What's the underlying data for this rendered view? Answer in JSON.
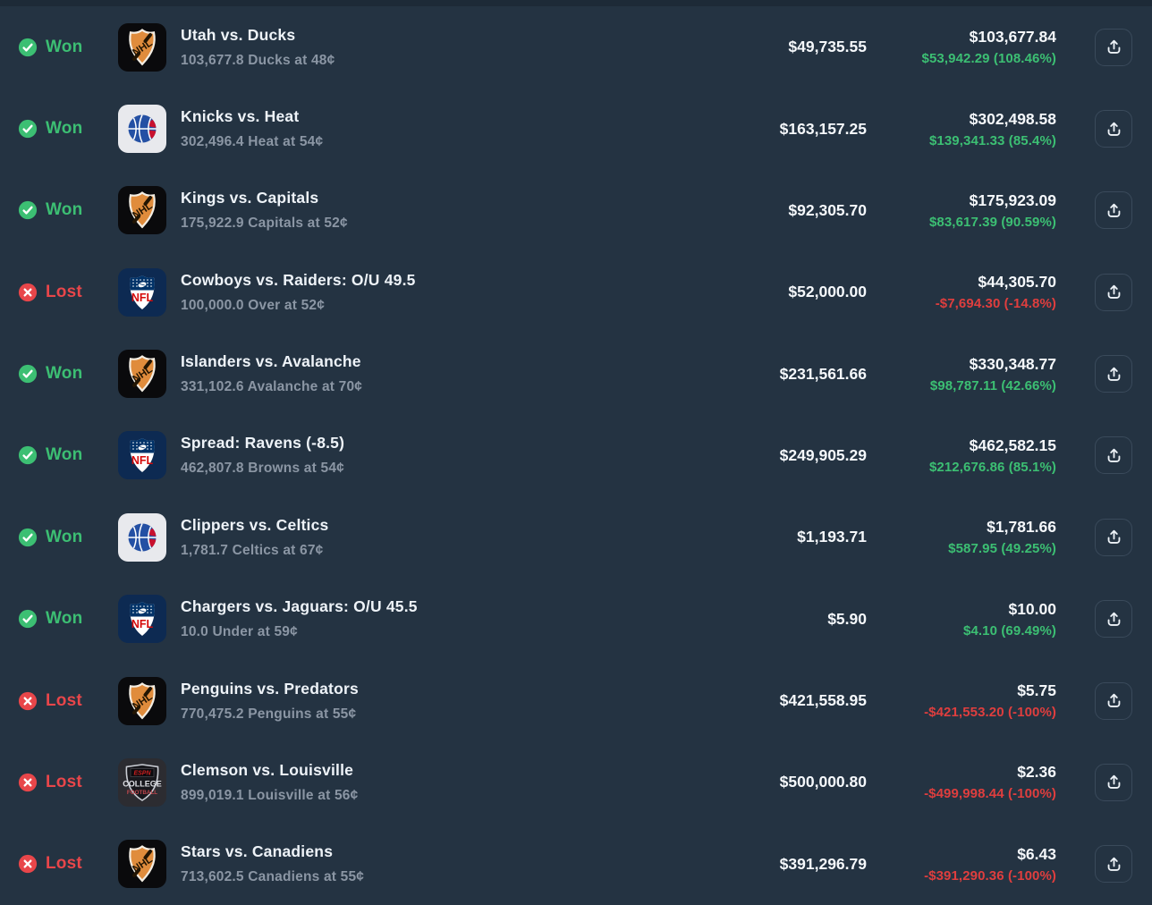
{
  "colors": {
    "background": "#243342",
    "top_strip": "#1d2a37",
    "win_green": "#3cbf73",
    "lost_red": "#e8464a",
    "loss_amount_red": "#df3e3e",
    "title_white": "#eef3f8",
    "amount_white": "#f5f8fb",
    "subtitle_gray": "#8b96a4",
    "button_border": "#3a4a5b"
  },
  "icons": {
    "won": "check-circle-icon",
    "lost": "x-circle-icon",
    "share": "upload-share-icon"
  },
  "rows": [
    {
      "outcome": "Won",
      "league": "nhl",
      "title": "Utah vs. Ducks",
      "position": "103,677.8 Ducks at 48¢",
      "bet": "$49,735.55",
      "value": "$103,677.84",
      "profit": "$53,942.29 (108.46%)"
    },
    {
      "outcome": "Won",
      "league": "nba",
      "title": "Knicks vs. Heat",
      "position": "302,496.4 Heat at 54¢",
      "bet": "$163,157.25",
      "value": "$302,498.58",
      "profit": "$139,341.33 (85.4%)"
    },
    {
      "outcome": "Won",
      "league": "nhl",
      "title": "Kings vs. Capitals",
      "position": "175,922.9 Capitals at 52¢",
      "bet": "$92,305.70",
      "value": "$175,923.09",
      "profit": "$83,617.39 (90.59%)"
    },
    {
      "outcome": "Lost",
      "league": "nfl",
      "title": "Cowboys vs. Raiders: O/U 49.5",
      "position": "100,000.0 Over at 52¢",
      "bet": "$52,000.00",
      "value": "$44,305.70",
      "profit": "-$7,694.30 (-14.8%)"
    },
    {
      "outcome": "Won",
      "league": "nhl",
      "title": "Islanders vs. Avalanche",
      "position": "331,102.6 Avalanche at 70¢",
      "bet": "$231,561.66",
      "value": "$330,348.77",
      "profit": "$98,787.11 (42.66%)"
    },
    {
      "outcome": "Won",
      "league": "nfl",
      "title": "Spread: Ravens (-8.5)",
      "position": "462,807.8 Browns at 54¢",
      "bet": "$249,905.29",
      "value": "$462,582.15",
      "profit": "$212,676.86 (85.1%)"
    },
    {
      "outcome": "Won",
      "league": "nba",
      "title": "Clippers vs. Celtics",
      "position": "1,781.7 Celtics at 67¢",
      "bet": "$1,193.71",
      "value": "$1,781.66",
      "profit": "$587.95 (49.25%)"
    },
    {
      "outcome": "Won",
      "league": "nfl",
      "title": "Chargers vs. Jaguars: O/U 45.5",
      "position": "10.0 Under at 59¢",
      "bet": "$5.90",
      "value": "$10.00",
      "profit": "$4.10 (69.49%)"
    },
    {
      "outcome": "Lost",
      "league": "nhl",
      "title": "Penguins vs. Predators",
      "position": "770,475.2 Penguins at 55¢",
      "bet": "$421,558.95",
      "value": "$5.75",
      "profit": "-$421,553.20 (-100%)"
    },
    {
      "outcome": "Lost",
      "league": "college-football",
      "title": "Clemson vs. Louisville",
      "position": "899,019.1 Louisville at 56¢",
      "bet": "$500,000.80",
      "value": "$2.36",
      "profit": "-$499,998.44 (-100%)"
    },
    {
      "outcome": "Lost",
      "league": "nhl",
      "title": "Stars vs. Canadiens",
      "position": "713,602.5 Canadiens at 55¢",
      "bet": "$391,296.79",
      "value": "$6.43",
      "profit": "-$391,290.36 (-100%)"
    }
  ]
}
